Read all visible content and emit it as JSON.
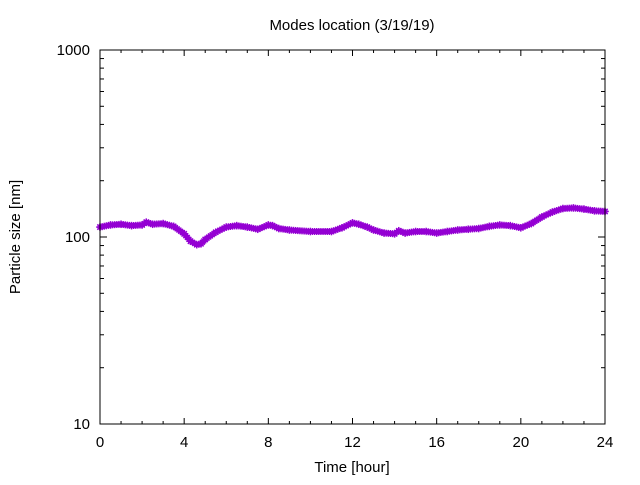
{
  "chart_data": {
    "type": "scatter",
    "title": "Modes location (3/19/19)",
    "xlabel": "Time [hour]",
    "ylabel": "Particle size [nm]",
    "xlim": [
      0,
      24
    ],
    "ylim": [
      10,
      1000
    ],
    "yscale": "log",
    "xticks": [
      0,
      4,
      8,
      12,
      16,
      20,
      24
    ],
    "xtick_labels": [
      "0",
      "4",
      "8",
      "12",
      "16",
      "20",
      "24"
    ],
    "yticks": [
      10,
      100,
      1000
    ],
    "ytick_labels": [
      "10",
      "100",
      "1000"
    ],
    "grid": false,
    "legend": "none",
    "marker": "star",
    "series": [
      {
        "color": "#9400d3",
        "x": [
          0,
          0.5,
          1,
          1.5,
          2,
          2.2,
          2.5,
          3,
          3.5,
          4,
          4.3,
          4.6,
          4.8,
          5,
          5.5,
          6,
          6.5,
          7,
          7.5,
          8,
          8.2,
          8.5,
          9,
          10,
          11,
          11.5,
          12,
          12.3,
          12.7,
          13,
          13.5,
          14,
          14.2,
          14.5,
          15,
          15.5,
          16,
          16.5,
          17,
          17.5,
          18,
          18.5,
          19,
          19.5,
          20,
          20.5,
          21,
          21.5,
          22,
          22.5,
          23,
          23.5,
          24
        ],
        "y": [
          113,
          116,
          117,
          115,
          116,
          120,
          117,
          118,
          114,
          104,
          95,
          91,
          92,
          97,
          106,
          113,
          115,
          113,
          110,
          116,
          115,
          111,
          109,
          107,
          107,
          112,
          119,
          117,
          113,
          109,
          105,
          104,
          108,
          105,
          107,
          107,
          105,
          107,
          109,
          110,
          111,
          114,
          116,
          115,
          112,
          118,
          128,
          136,
          142,
          143,
          141,
          138,
          137
        ]
      }
    ]
  }
}
